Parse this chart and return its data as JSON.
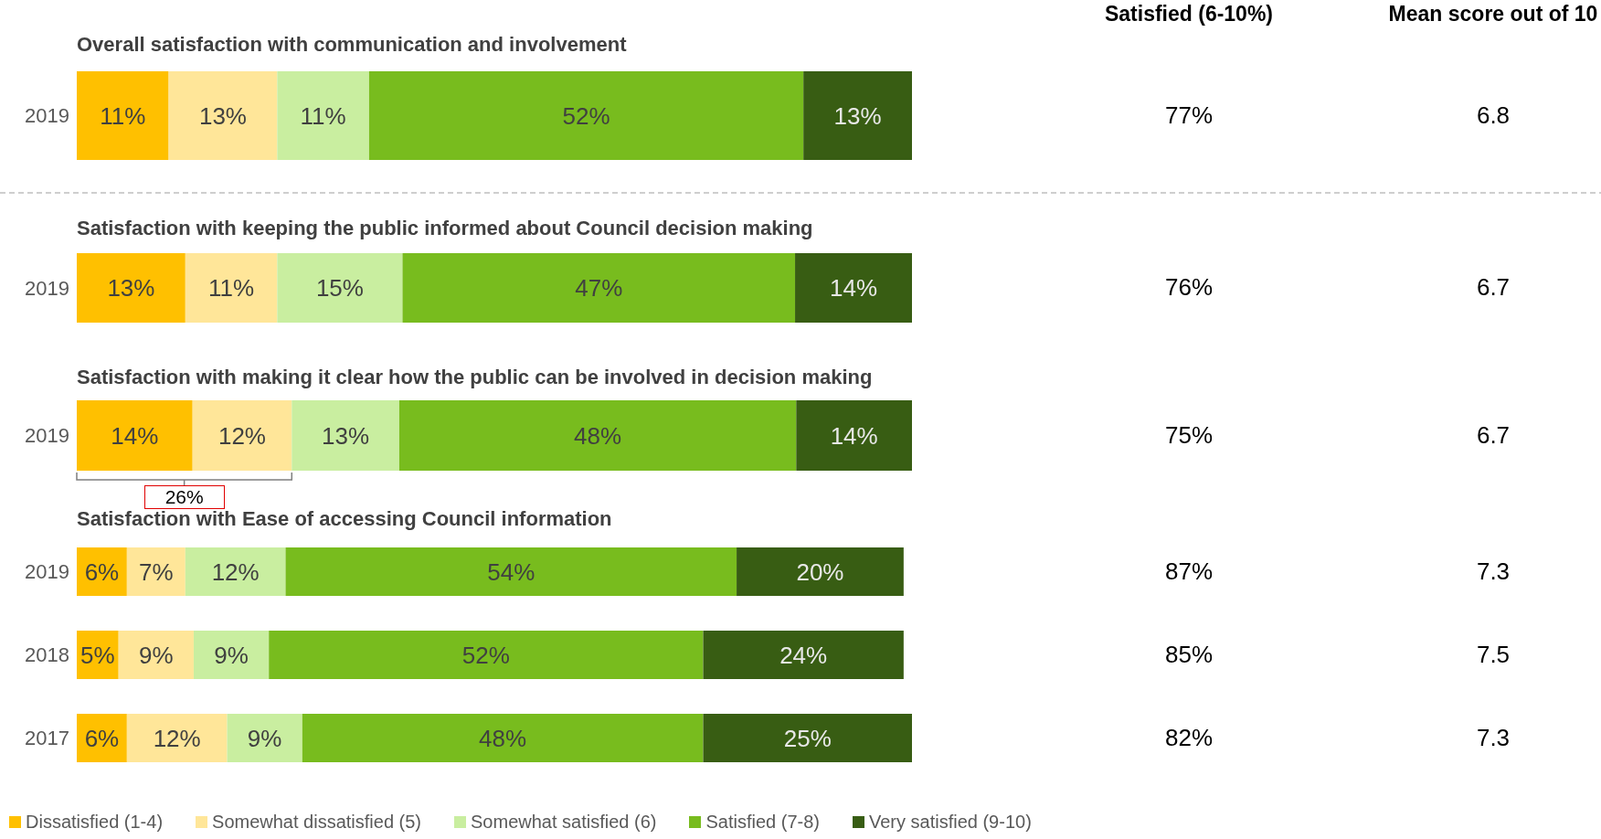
{
  "chart_data": [
    {
      "type": "bar",
      "orientation": "horizontal",
      "stacked": true,
      "title": "Overall satisfaction with communication and involvement",
      "categories": [
        "2019"
      ],
      "series": [
        {
          "color": "#ffc000",
          "values": [
            11
          ],
          "value_labels": [
            "11%"
          ]
        },
        {
          "color": "#ffe699",
          "values": [
            13
          ],
          "value_labels": [
            "13%"
          ]
        },
        {
          "color": "#c9eea0",
          "values": [
            11
          ],
          "value_labels": [
            "11%"
          ]
        },
        {
          "color": "#78bc1e",
          "values": [
            52
          ],
          "value_labels": [
            "52%"
          ]
        },
        {
          "color": "#385d13",
          "values": [
            13
          ],
          "value_labels": [
            "13%"
          ]
        }
      ],
      "annotations": [
        "Satisfied (6-10%)",
        "Mean score out of 10",
        "77%",
        "6.8"
      ]
    },
    {
      "type": "bar",
      "orientation": "horizontal",
      "stacked": true,
      "title": "Satisfaction with keeping the public informed about Council decision making",
      "categories": [
        "2019"
      ],
      "series": [
        {
          "color": "#ffc000",
          "values": [
            13
          ],
          "value_labels": [
            "13%"
          ]
        },
        {
          "color": "#ffe699",
          "values": [
            11
          ],
          "value_labels": [
            "11%"
          ]
        },
        {
          "color": "#c9eea0",
          "values": [
            15
          ],
          "value_labels": [
            "15%"
          ]
        },
        {
          "color": "#78bc1e",
          "values": [
            47
          ],
          "value_labels": [
            "47%"
          ]
        },
        {
          "color": "#385d13",
          "values": [
            14
          ],
          "value_labels": [
            "14%"
          ]
        }
      ],
      "annotations": [
        "76%",
        "6.7"
      ]
    },
    {
      "type": "bar",
      "orientation": "horizontal",
      "stacked": true,
      "title": "Satisfaction with making it clear how the public can be involved in decision making",
      "categories": [
        "2019"
      ],
      "series": [
        {
          "color": "#ffc000",
          "values": [
            14
          ],
          "value_labels": [
            "14%"
          ]
        },
        {
          "color": "#ffe699",
          "values": [
            12
          ],
          "value_labels": [
            "12%"
          ]
        },
        {
          "color": "#c9eea0",
          "values": [
            13
          ],
          "value_labels": [
            "13%"
          ]
        },
        {
          "color": "#78bc1e",
          "values": [
            48
          ],
          "value_labels": [
            "48%"
          ]
        },
        {
          "color": "#385d13",
          "values": [
            14
          ],
          "value_labels": [
            "14%"
          ]
        }
      ],
      "annotations": [
        "75%",
        "6.7",
        "26%"
      ]
    },
    {
      "type": "bar",
      "orientation": "horizontal",
      "stacked": true,
      "legend": "bottom",
      "title": "Satisfaction with Ease of accessing Council information",
      "categories": [
        "2019",
        "2018",
        "2017"
      ],
      "series": [
        {
          "name": "Dissatisfied (1-4)",
          "color": "#ffc000",
          "values": [
            6,
            5,
            6
          ],
          "value_labels": [
            "6%",
            "5%",
            "6%"
          ]
        },
        {
          "name": "Somewhat dissatisfied (5)",
          "color": "#ffe699",
          "values": [
            7,
            9,
            12
          ],
          "value_labels": [
            "7%",
            "9%",
            "12%"
          ]
        },
        {
          "name": "Somewhat satisfied (6)",
          "color": "#c9eea0",
          "values": [
            12,
            9,
            9
          ],
          "value_labels": [
            "12%",
            "9%",
            "9%"
          ]
        },
        {
          "name": "Satisfied (7-8)",
          "color": "#78bc1e",
          "values": [
            54,
            52,
            48
          ],
          "value_labels": [
            "54%",
            "52%",
            "48%"
          ]
        },
        {
          "name": "Very satisfied (9-10)",
          "color": "#385d13",
          "values": [
            20,
            24,
            25
          ],
          "value_labels": [
            "20%",
            "24%",
            "25%"
          ]
        }
      ],
      "annotations": [
        "87%",
        "7.3",
        "85%",
        "7.5",
        "82%",
        "7.3"
      ]
    }
  ]
}
